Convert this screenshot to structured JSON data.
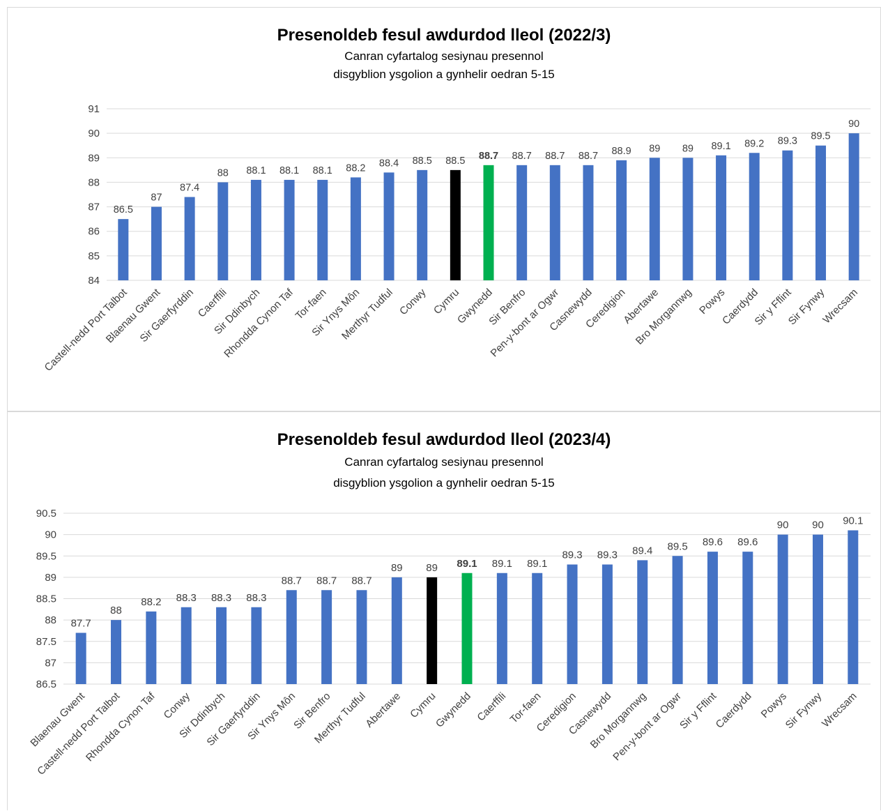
{
  "chart_data": [
    {
      "type": "bar",
      "title": "Presenoldeb fesul awdurdod lleol (2022/3)",
      "subtitle_lines": [
        "Canran cyfartalog sesiynau presennol",
        "disgyblion ysgolion a gynhelir oedran 5-15"
      ],
      "categories": [
        "Castell-nedd Port Talbot",
        "Blaenau Gwent",
        "Sir Gaerfyrddin",
        "Caerffili",
        "Sir Ddinbych",
        "Rhondda Cynon Taf",
        "Tor-faen",
        "Sir Ynys Môn",
        "Merthyr Tudful",
        "Conwy",
        "Cymru",
        "Gwynedd",
        "Sir Benfro",
        "Pen-y-bont ar Ogwr",
        "Casnewydd",
        "Ceredigion",
        "Abertawe",
        "Bro Morgannwg",
        "Powys",
        "Caerdydd",
        "Sir y Fflint",
        "Sir Fynwy",
        "Wrecsam"
      ],
      "values": [
        86.5,
        87,
        87.4,
        88,
        88.1,
        88.1,
        88.1,
        88.2,
        88.4,
        88.5,
        88.5,
        88.7,
        88.7,
        88.7,
        88.7,
        88.9,
        89,
        89,
        89.1,
        89.2,
        89.3,
        89.5,
        90
      ],
      "yticks": [
        "84",
        "85",
        "86",
        "87",
        "88",
        "89",
        "90",
        "91"
      ],
      "ylim": [
        84,
        91
      ],
      "grid": true,
      "colors": {
        "default": "#4472c4",
        "Cymru": "#000000",
        "Gwynedd": "#00b050"
      },
      "bold_label": "Gwynedd"
    },
    {
      "type": "bar",
      "title": "Presenoldeb fesul awdurdod lleol (2023/4)",
      "subtitle_lines": [
        "Canran cyfartalog sesiynau presennol",
        "disgyblion ysgolion a gynhelir oedran 5-15"
      ],
      "categories": [
        "Blaenau Gwent",
        "Castell-nedd Port Talbot",
        "Rhondda Cynon Taf",
        "Conwy",
        "Sir Ddinbych",
        "Sir Gaerfyrddin",
        "Sir Ynys Môn",
        "Sir Benfro",
        "Merthyr Tudful",
        "Abertawe",
        "Cymru",
        "Gwynedd",
        "Caerffili",
        "Tor-faen",
        "Ceredigion",
        "Casnewydd",
        "Bro Morgannwg",
        "Pen-y-bont ar Ogwr",
        "Sir y Fflint",
        "Caerdydd",
        "Powys",
        "Sir Fynwy",
        "Wrecsam"
      ],
      "values": [
        87.7,
        88,
        88.2,
        88.3,
        88.3,
        88.3,
        88.7,
        88.7,
        88.7,
        89,
        89,
        89.1,
        89.1,
        89.1,
        89.3,
        89.3,
        89.4,
        89.5,
        89.6,
        89.6,
        90,
        90,
        90.1
      ],
      "yticks": [
        "86.5",
        "87",
        "87.5",
        "88",
        "88.5",
        "89",
        "89.5",
        "90",
        "90.5"
      ],
      "ylim": [
        86.5,
        90.5
      ],
      "grid": true,
      "colors": {
        "default": "#4472c4",
        "Cymru": "#000000",
        "Gwynedd": "#00b050"
      },
      "bold_label": "Gwynedd"
    }
  ]
}
